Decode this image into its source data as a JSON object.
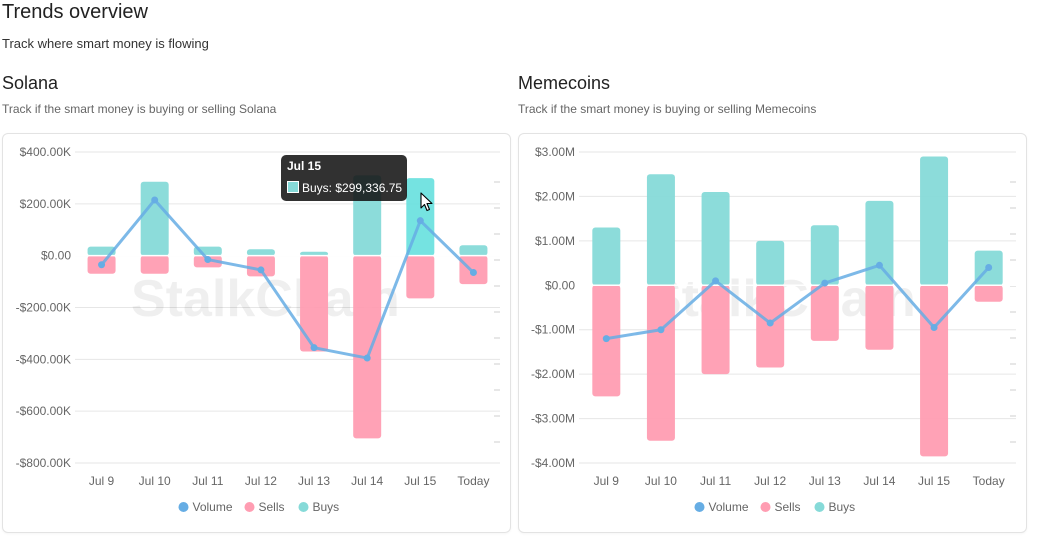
{
  "page": {
    "title": "Trends overview",
    "subtitle": "Track where smart money is flowing"
  },
  "sections": [
    {
      "title": "Solana",
      "subtitle": "Track if the smart money is buying or selling Solana"
    },
    {
      "title": "Memecoins",
      "subtitle": "Track if the smart money is buying or selling Memecoins"
    }
  ],
  "watermark": "StalkChain",
  "legend": {
    "volume": "Volume",
    "sells": "Sells",
    "buys": "Buys"
  },
  "colors": {
    "buys": "#86dad8",
    "sells": "#ff9db2",
    "volume": "#66ade4",
    "grid": "#e6e6e6",
    "axis": "#666666"
  },
  "tooltip": {
    "title": "Jul 15",
    "label": "Buys: $299,336.75"
  },
  "chart_data": [
    {
      "type": "bar",
      "stacked": true,
      "categories": [
        "Jul 9",
        "Jul 10",
        "Jul 11",
        "Jul 12",
        "Jul 13",
        "Jul 14",
        "Jul 15",
        "Today"
      ],
      "series": [
        {
          "name": "Buys",
          "type": "bar",
          "values": [
            35000,
            285000,
            35000,
            25000,
            15000,
            310000,
            299336.75,
            40000
          ]
        },
        {
          "name": "Sells",
          "type": "bar",
          "values": [
            -70000,
            -70000,
            -45000,
            -80000,
            -370000,
            -705000,
            -165000,
            -110000
          ]
        },
        {
          "name": "Volume",
          "type": "line",
          "values": [
            -35000,
            215000,
            -15000,
            -55000,
            -355000,
            -395000,
            135000,
            -65000
          ]
        }
      ],
      "yticks": [
        400000,
        200000,
        0,
        -200000,
        -400000,
        -600000,
        -800000
      ],
      "yticklabels": [
        "$400.00K",
        "$200.00K",
        "$0.00",
        "-$200.00K",
        "-$400.00K",
        "-$600.00K",
        "-$800.00K"
      ],
      "ylim": [
        -800000,
        400000
      ],
      "grid": true,
      "legend_position": "bottom"
    },
    {
      "type": "bar",
      "stacked": true,
      "categories": [
        "Jul 9",
        "Jul 10",
        "Jul 11",
        "Jul 12",
        "Jul 13",
        "Jul 14",
        "Jul 15",
        "Today"
      ],
      "series": [
        {
          "name": "Buys",
          "type": "bar",
          "values": [
            1300000,
            2500000,
            2100000,
            1000000,
            1350000,
            1900000,
            2900000,
            780000
          ]
        },
        {
          "name": "Sells",
          "type": "bar",
          "values": [
            -2500000,
            -3500000,
            -2000000,
            -1850000,
            -1250000,
            -1450000,
            -3850000,
            -370000
          ]
        },
        {
          "name": "Volume",
          "type": "line",
          "values": [
            -1200000,
            -1000000,
            100000,
            -850000,
            50000,
            450000,
            -950000,
            400000
          ]
        }
      ],
      "yticks": [
        3000000,
        2000000,
        1000000,
        0,
        -1000000,
        -2000000,
        -3000000,
        -4000000
      ],
      "yticklabels": [
        "$3.00M",
        "$2.00M",
        "$1.00M",
        "$0.00",
        "-$1.00M",
        "-$2.00M",
        "-$3.00M",
        "-$4.00M"
      ],
      "ylim": [
        -4000000,
        3000000
      ],
      "grid": true,
      "legend_position": "bottom"
    }
  ]
}
